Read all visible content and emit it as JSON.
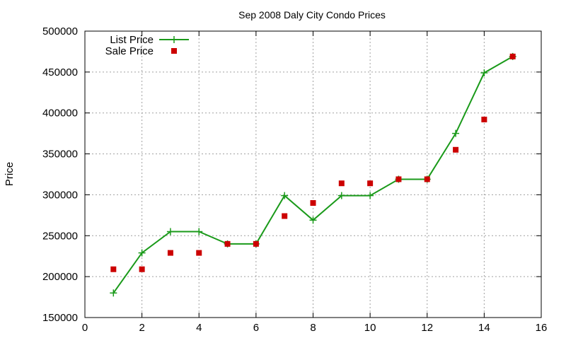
{
  "chart_data": {
    "type": "line",
    "title": "Sep 2008 Daly City Condo Prices",
    "xlabel": "",
    "ylabel": "Price",
    "xlim": [
      0,
      16
    ],
    "ylim": [
      150000,
      500000
    ],
    "x_ticks": [
      0,
      2,
      4,
      6,
      8,
      10,
      12,
      14,
      16
    ],
    "y_ticks": [
      150000,
      200000,
      250000,
      300000,
      350000,
      400000,
      450000,
      500000
    ],
    "grid": true,
    "legend_position": "top-left",
    "series": [
      {
        "name": "List Price",
        "style": "line+cross",
        "color": "#1a9a1a",
        "x": [
          1,
          2,
          3,
          4,
          5,
          6,
          7,
          8,
          9,
          10,
          11,
          12,
          13,
          14,
          15
        ],
        "values": [
          180000,
          229000,
          255000,
          255000,
          240000,
          240000,
          299000,
          269000,
          299000,
          299000,
          319000,
          319000,
          375000,
          449000,
          469000
        ]
      },
      {
        "name": "Sale Price",
        "style": "square-points",
        "color": "#cc0000",
        "x": [
          1,
          2,
          3,
          4,
          5,
          6,
          7,
          8,
          9,
          10,
          11,
          12,
          13,
          14,
          15
        ],
        "values": [
          209000,
          209000,
          229000,
          229000,
          240000,
          240000,
          274000,
          290000,
          314000,
          314000,
          319000,
          319000,
          355000,
          392000,
          469000
        ]
      }
    ]
  }
}
